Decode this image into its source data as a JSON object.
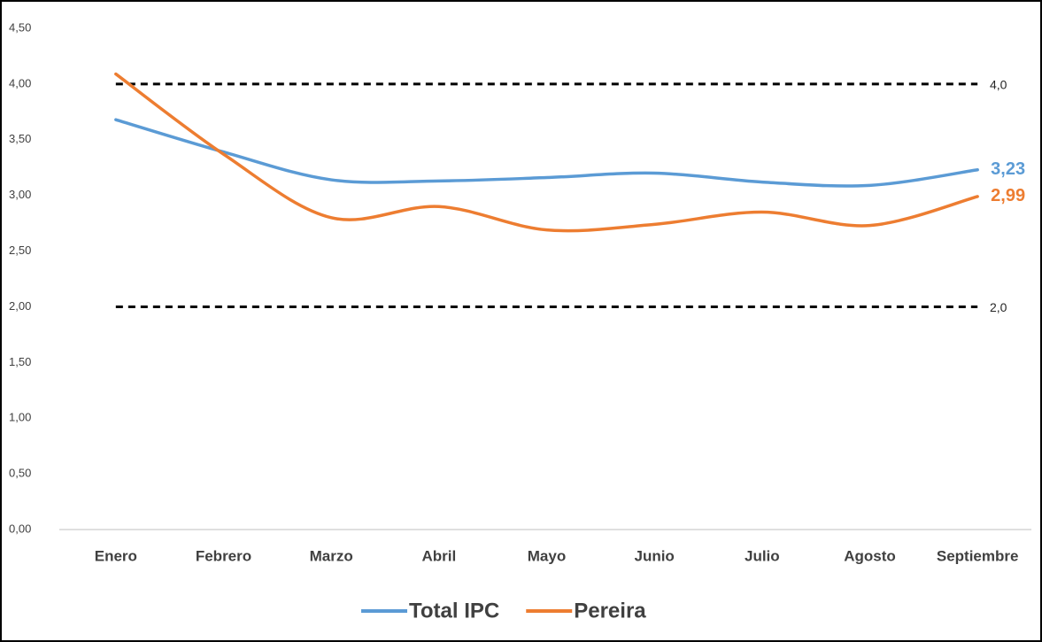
{
  "chart_data": {
    "type": "line",
    "categories": [
      "Enero",
      "Febrero",
      "Marzo",
      "Abril",
      "Mayo",
      "Junio",
      "Julio",
      "Agosto",
      "Septiembre"
    ],
    "series": [
      {
        "name": "Total IPC",
        "color": "#5b9bd5",
        "values": [
          3.68,
          3.39,
          3.14,
          3.13,
          3.16,
          3.2,
          3.12,
          3.09,
          3.23
        ],
        "value_labels": [
          null,
          null,
          null,
          null,
          null,
          null,
          null,
          null,
          "3,23"
        ]
      },
      {
        "name": "Pereira",
        "color": "#ed7d31",
        "values": [
          4.09,
          3.37,
          2.8,
          2.9,
          2.69,
          2.74,
          2.85,
          2.73,
          2.99
        ],
        "value_labels": [
          null,
          null,
          null,
          null,
          null,
          null,
          null,
          null,
          "2,99"
        ]
      }
    ],
    "reference_lines": [
      {
        "value": 4,
        "label": "4,0"
      },
      {
        "value": 2,
        "label": "2,0"
      }
    ],
    "ylim": [
      0,
      4.5
    ],
    "yticks": [
      {
        "value": 0,
        "label": "0,00"
      },
      {
        "value": 0.5,
        "label": "0,50"
      },
      {
        "value": 1,
        "label": "1,00"
      },
      {
        "value": 1.5,
        "label": "1,50"
      },
      {
        "value": 2,
        "label": "2,00"
      },
      {
        "value": 2.5,
        "label": "2,50"
      },
      {
        "value": 3,
        "label": "3,00"
      },
      {
        "value": 3.5,
        "label": "3,50"
      },
      {
        "value": 4,
        "label": "4,00"
      },
      {
        "value": 4.5,
        "label": "4,50"
      }
    ],
    "legend": "bottom"
  }
}
